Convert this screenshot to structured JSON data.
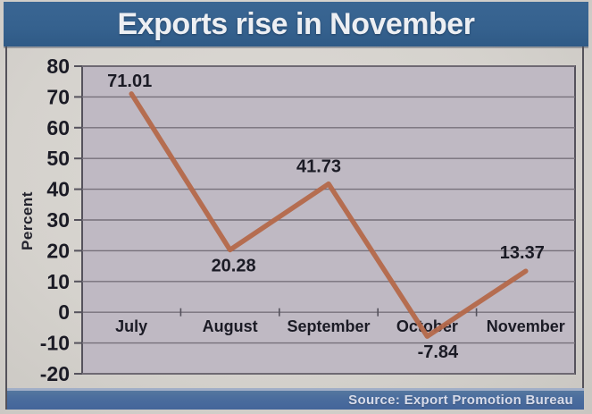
{
  "header": {
    "title": "Exports rise in November"
  },
  "footer": {
    "source": "Source: Export Promotion Bureau"
  },
  "chart_data": {
    "type": "line",
    "title": "Exports rise in November",
    "categories": [
      "July",
      "August",
      "September",
      "October",
      "November"
    ],
    "values": [
      71.01,
      20.28,
      41.73,
      -7.84,
      13.37
    ],
    "value_labels": [
      "71.01",
      "20.28",
      "41.73",
      "-7.84",
      "13.37"
    ],
    "label_positions": [
      "above",
      "below",
      "above",
      "below",
      "above"
    ],
    "label_dx": [
      -2,
      4,
      -11,
      12,
      -4
    ],
    "label_dy": [
      -8,
      24,
      -13,
      24,
      -14
    ],
    "ylabel": "Percent",
    "ylim": [
      -20,
      80
    ],
    "y_ticks": [
      80,
      70,
      60,
      50,
      40,
      30,
      20,
      10,
      0,
      -10,
      -20
    ],
    "grid": true,
    "legend": false,
    "line_color": "#b4684a",
    "source": "Source: Export Promotion Bureau",
    "colors": {
      "banner_blue": "#35618e",
      "source_bar_blue": "#4a6c9d",
      "plot_background": "#bfb9c3",
      "gridline": "#77717b",
      "axis": "#55525c",
      "label_text": "#1b1b25"
    }
  }
}
